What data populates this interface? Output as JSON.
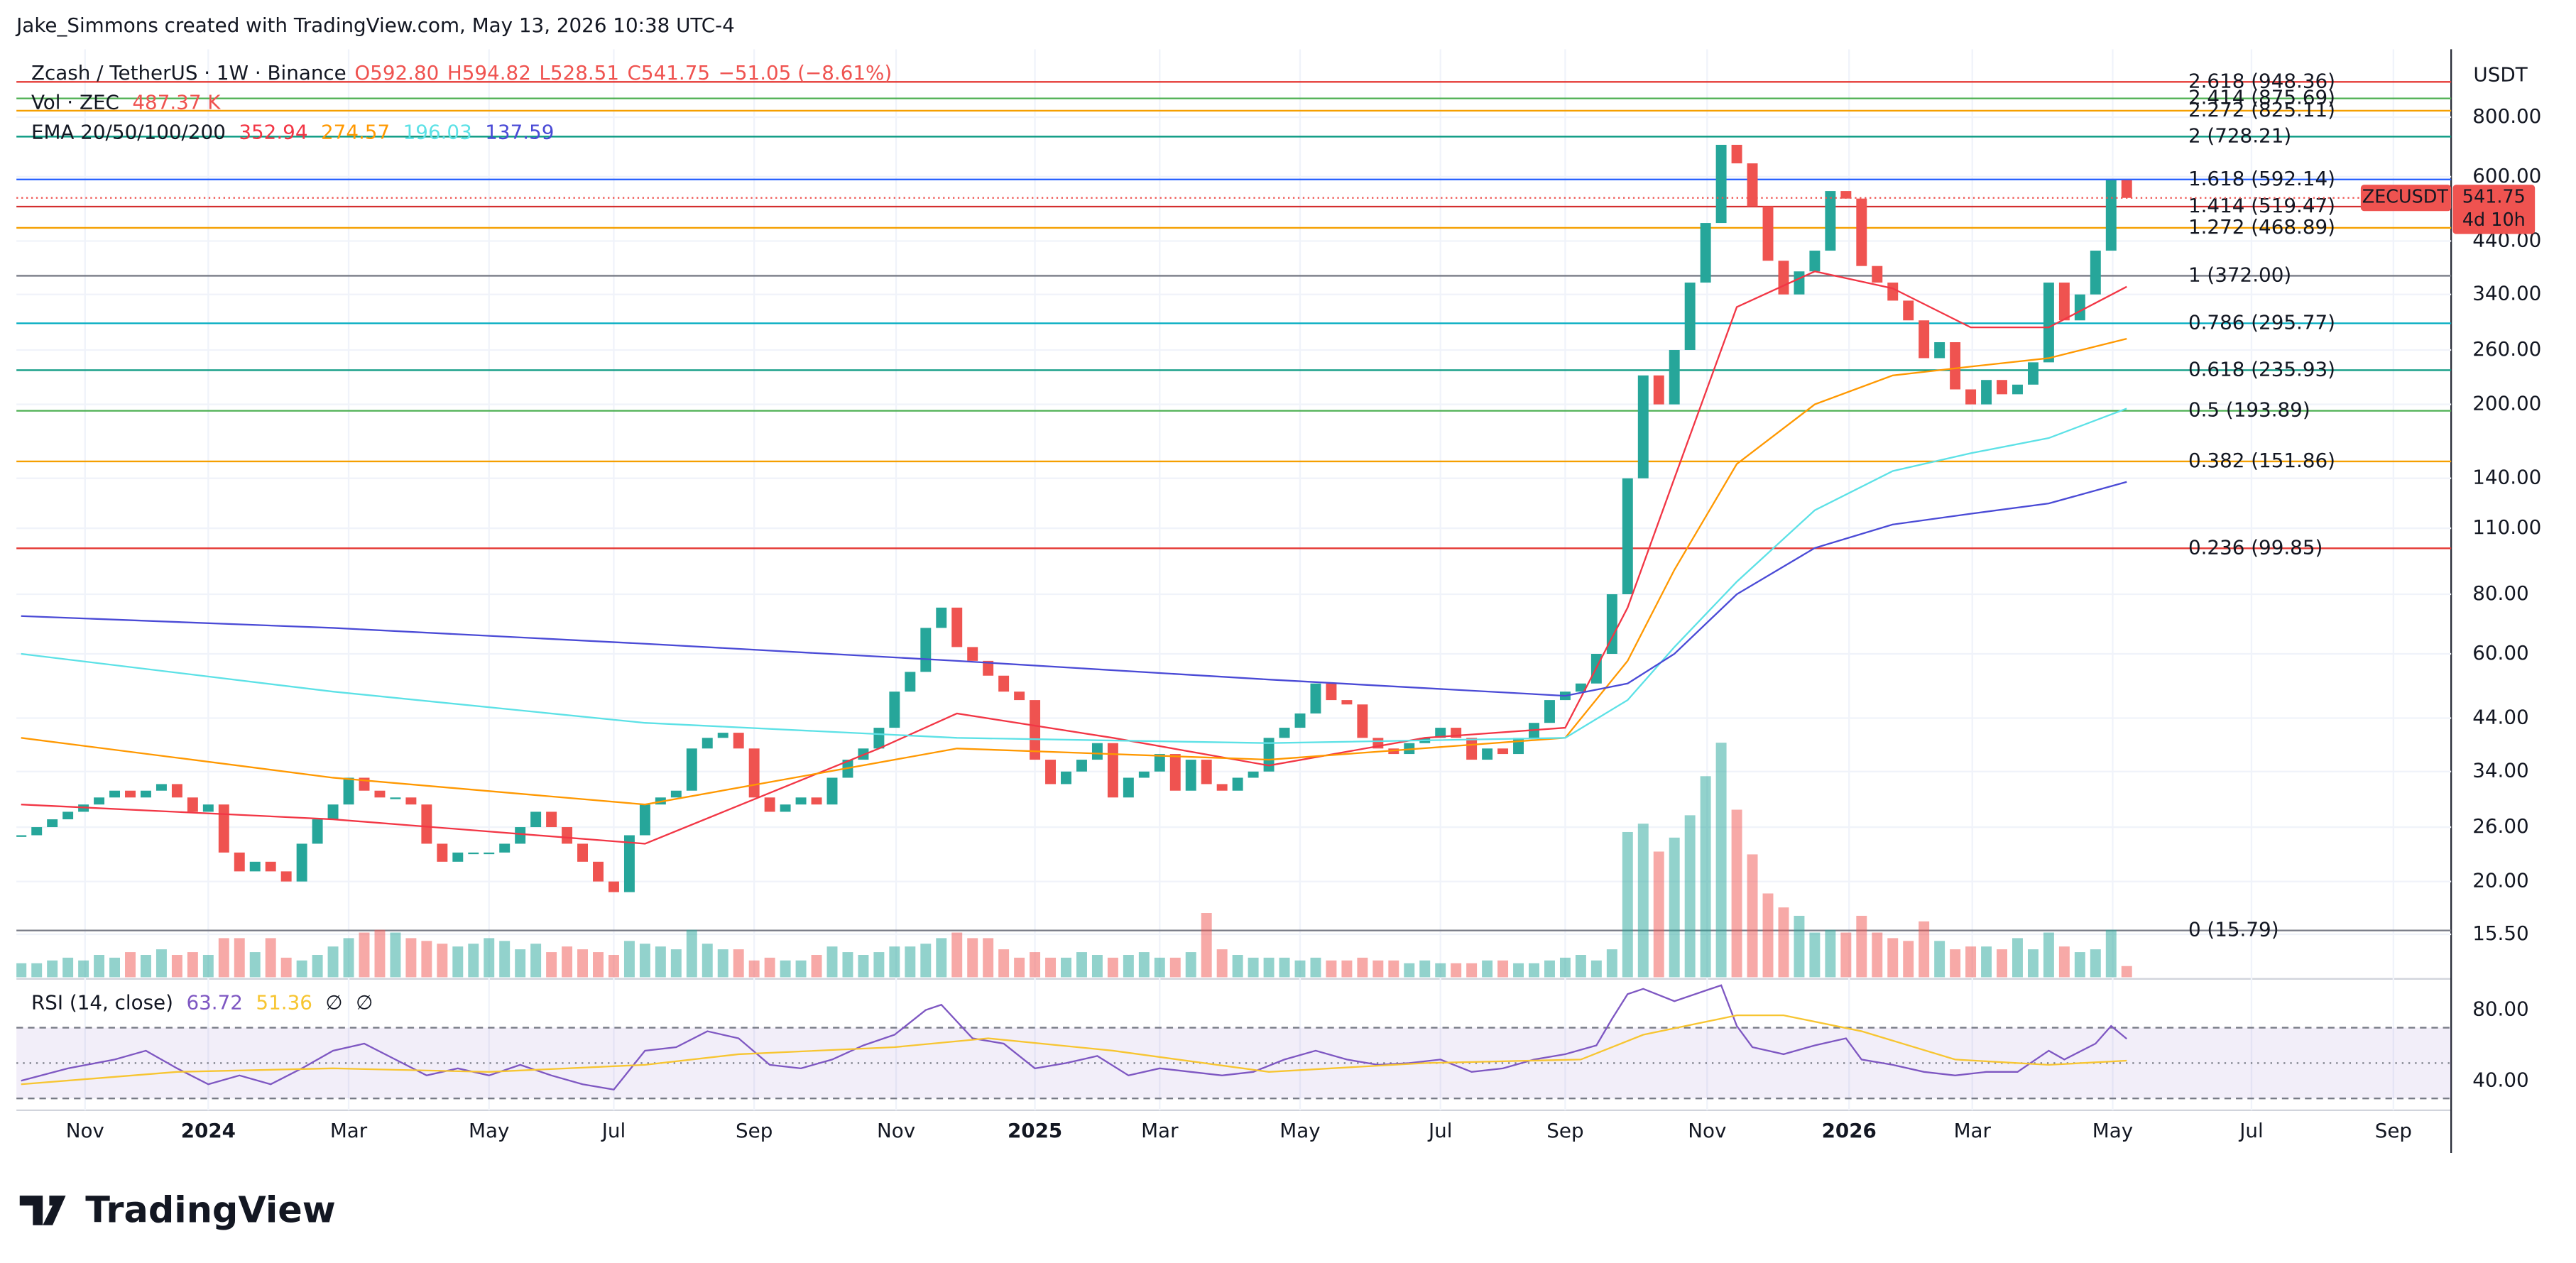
{
  "header": {
    "attribution": "Jake_Simmons created with TradingView.com, May 13, 2026 10:38 UTC-4"
  },
  "chart_data": {
    "type": "candlestick",
    "legend": {
      "symbol": "Zcash / TetherUS · 1W · Binance",
      "ohlc": [
        "O592.80",
        "H594.82",
        "L528.51",
        "C541.75"
      ],
      "change": "−51.05 (−8.61%)",
      "volume_label": "Vol · ZEC",
      "volume_value": "487.37 K",
      "ema_label": "EMA 20/50/100/200"
    },
    "currency": "USDT",
    "symbol_tag": "ZECUSDT",
    "countdown": "4d 10h",
    "colors": {
      "up": "#26a69a",
      "down": "#ef5350"
    },
    "closes": [
      25,
      26,
      27,
      28,
      29,
      30,
      31,
      30,
      31,
      32,
      30,
      28,
      29,
      23,
      21,
      22,
      21,
      20,
      24,
      27,
      29,
      33,
      31,
      30,
      30,
      29,
      24,
      22,
      23,
      23,
      23,
      24,
      26,
      28,
      26,
      24,
      22,
      20,
      19,
      25,
      29,
      30,
      31,
      38,
      40,
      41,
      38,
      30,
      28,
      29,
      30,
      29,
      33,
      36,
      38,
      42,
      50,
      55,
      68,
      75,
      62,
      58,
      54,
      50,
      48,
      36,
      32,
      34,
      36,
      39,
      30,
      33,
      34,
      37,
      31,
      36,
      32,
      31,
      33,
      34,
      40,
      42,
      45,
      52,
      48,
      47,
      40,
      38,
      37,
      39,
      40,
      42,
      40,
      36,
      38,
      37,
      40,
      43,
      48,
      50,
      52,
      60,
      80,
      140,
      230,
      200,
      260,
      360,
      480,
      700,
      640,
      520,
      400,
      340,
      380,
      420,
      560,
      540,
      390,
      360,
      330,
      300,
      250,
      270,
      215,
      200,
      225,
      210,
      220,
      245,
      360,
      300,
      340,
      420,
      590,
      541.75
    ],
    "volumes": [
      5,
      5,
      6,
      7,
      6,
      8,
      7,
      9,
      8,
      10,
      8,
      9,
      8,
      14,
      14,
      9,
      14,
      7,
      6,
      8,
      11,
      14,
      16,
      17,
      16,
      14,
      13,
      12,
      11,
      12,
      14,
      13,
      10,
      12,
      9,
      11,
      10,
      9,
      8,
      13,
      12,
      11,
      10,
      17,
      12,
      10,
      10,
      6,
      7,
      6,
      6,
      8,
      11,
      9,
      8,
      9,
      11,
      11,
      12,
      14,
      16,
      14,
      14,
      10,
      7,
      9,
      7,
      7,
      9,
      8,
      7,
      8,
      9,
      7,
      7,
      9,
      23,
      10,
      8,
      7,
      7,
      7,
      6,
      7,
      6,
      6,
      7,
      6,
      6,
      5,
      6,
      5,
      5,
      5,
      6,
      6,
      5,
      5,
      6,
      7,
      8,
      6,
      10,
      52,
      55,
      45,
      50,
      58,
      72,
      84,
      60,
      44,
      30,
      25,
      22,
      16,
      17,
      16,
      22,
      16,
      14,
      13,
      20,
      13,
      10,
      11,
      11,
      10,
      14,
      10,
      16,
      11,
      9,
      10,
      17,
      4
    ],
    "vlim": [
      0,
      100
    ],
    "log_scale": true,
    "grid": true,
    "ylim": [
      12.6,
      1110
    ],
    "yticks": [
      {
        "value": 800,
        "label": "800.00"
      },
      {
        "value": 600,
        "label": "600.00"
      },
      {
        "value": 440,
        "label": "440.00"
      },
      {
        "value": 340,
        "label": "340.00"
      },
      {
        "value": 260,
        "label": "260.00"
      },
      {
        "value": 200,
        "label": "200.00"
      },
      {
        "value": 140,
        "label": "140.00"
      },
      {
        "value": 110,
        "label": "110.00"
      },
      {
        "value": 80,
        "label": "80.00"
      },
      {
        "value": 60,
        "label": "60.00"
      },
      {
        "value": 44,
        "label": "44.00"
      },
      {
        "value": 34,
        "label": "34.00"
      },
      {
        "value": 26,
        "label": "26.00"
      },
      {
        "value": 20,
        "label": "20.00"
      },
      {
        "value": 15.5,
        "label": "15.50"
      }
    ],
    "xlim": [
      -0.3,
      155.8
    ],
    "xticks": [
      {
        "value": 4.1,
        "label": "Nov"
      },
      {
        "value": 12.0,
        "label": "2024"
      },
      {
        "value": 21.0,
        "label": "Mar"
      },
      {
        "value": 30.0,
        "label": "May"
      },
      {
        "value": 38.0,
        "label": "Jul"
      },
      {
        "value": 47.0,
        "label": "Sep"
      },
      {
        "value": 56.1,
        "label": "Nov"
      },
      {
        "value": 65.0,
        "label": "2025"
      },
      {
        "value": 73.0,
        "label": "Mar"
      },
      {
        "value": 82.0,
        "label": "May"
      },
      {
        "value": 91.0,
        "label": "Jul"
      },
      {
        "value": 99.0,
        "label": "Sep"
      },
      {
        "value": 108.1,
        "label": "Nov"
      },
      {
        "value": 117.2,
        "label": "2026"
      },
      {
        "value": 125.1,
        "label": "Mar"
      },
      {
        "value": 134.1,
        "label": "May"
      },
      {
        "value": 143.0,
        "label": "Jul"
      },
      {
        "value": 152.1,
        "label": "Sep"
      }
    ],
    "ema_series": [
      {
        "color": "#f23645",
        "x": [
          0,
          20,
          40,
          55,
          60,
          70,
          80,
          90,
          99,
          103,
          106,
          110,
          115,
          120,
          125,
          130,
          135
        ],
        "values": [
          29,
          27,
          24,
          38,
          45,
          40,
          35,
          40,
          42,
          75,
          140,
          320,
          380,
          350,
          290,
          290,
          352.94
        ]
      },
      {
        "color": "#ff9800",
        "x": [
          0,
          20,
          40,
          60,
          80,
          99,
          103,
          106,
          110,
          115,
          120,
          125,
          130,
          135
        ],
        "values": [
          40,
          33,
          29,
          38,
          36,
          40,
          58,
          90,
          150,
          200,
          230,
          240,
          250,
          274.57
        ]
      },
      {
        "color": "#5ce1e6",
        "x": [
          0,
          20,
          40,
          60,
          80,
          99,
          103,
          106,
          110,
          115,
          120,
          125,
          130,
          135
        ],
        "values": [
          60,
          50,
          43,
          40,
          39,
          40,
          48,
          62,
          85,
          120,
          145,
          158,
          170,
          196.03
        ]
      },
      {
        "color": "#4a4ad6",
        "x": [
          0,
          20,
          40,
          60,
          80,
          99,
          103,
          106,
          110,
          115,
          120,
          125,
          130,
          135
        ],
        "values": [
          72,
          68,
          63,
          58,
          53,
          49,
          52,
          60,
          80,
          100,
          112,
          118,
          124,
          137.59
        ]
      }
    ],
    "fib_levels": [
      {
        "label": "2.618 (948.36)",
        "value": 948.36,
        "color": "#e53935"
      },
      {
        "label": "2.414 (875.69)",
        "value": 875.69,
        "color": "#4caf50"
      },
      {
        "label": "2.272 (825.11)",
        "value": 825.11,
        "color": "#f59f00"
      },
      {
        "label": "2 (728.21)",
        "value": 728.21,
        "color": "#089981"
      },
      {
        "label": "1.618 (592.14)",
        "value": 592.14,
        "color": "#2962ff"
      },
      {
        "label": "1.414 (519.47)",
        "value": 519.47,
        "color": "#d32f2f"
      },
      {
        "label": "1.272 (468.89)",
        "value": 468.89,
        "color": "#f59f00"
      },
      {
        "label": "1 (372.00)",
        "value": 372.0,
        "color": "#787b86"
      },
      {
        "label": "0.786 (295.77)",
        "value": 295.77,
        "color": "#00acc1"
      },
      {
        "label": "0.618 (235.93)",
        "value": 235.93,
        "color": "#089981"
      },
      {
        "label": "0.5 (193.89)",
        "value": 193.89,
        "color": "#4caf50"
      },
      {
        "label": "0.382 (151.86)",
        "value": 151.86,
        "color": "#f59f00"
      },
      {
        "label": "0.236 (99.85)",
        "value": 99.85,
        "color": "#e53935"
      },
      {
        "label": "0 (15.79)",
        "value": 15.79,
        "color": "#787b86"
      }
    ],
    "rsi": {
      "label": "RSI (14, close)",
      "extra": [
        "∅",
        "∅"
      ],
      "ylim": [
        23.3,
        96.7
      ],
      "yticks": [
        {
          "value": 80,
          "label": "80.00"
        },
        {
          "value": 40,
          "label": "40.00"
        }
      ],
      "bands": [
        70,
        50,
        30
      ],
      "series": [
        {
          "color": "#7e57c2",
          "x": [
            0,
            3,
            6,
            8,
            10,
            12,
            14,
            16,
            18,
            20,
            22,
            24,
            26,
            28,
            30,
            32,
            34,
            36,
            38,
            40,
            42,
            44,
            46,
            48,
            50,
            52,
            54,
            56,
            58,
            59,
            61,
            63,
            65,
            67,
            69,
            71,
            73,
            75,
            77,
            79,
            81,
            83,
            85,
            87,
            89,
            91,
            93,
            95,
            97,
            99,
            101,
            102,
            103,
            104,
            106,
            108,
            109,
            110,
            111,
            113,
            115,
            117,
            118,
            120,
            122,
            124,
            126,
            128,
            130,
            131,
            133,
            134,
            135
          ],
          "values": [
            40,
            47,
            52,
            57,
            47,
            38,
            43,
            38,
            47,
            57,
            61,
            52,
            43,
            47,
            43,
            49,
            43,
            38,
            35,
            57,
            59,
            68,
            64,
            49,
            47,
            52,
            60,
            66,
            80,
            83,
            64,
            61,
            47,
            50,
            54,
            43,
            47,
            45,
            43,
            45,
            52,
            57,
            52,
            49,
            50,
            52,
            45,
            47,
            52,
            55,
            60,
            75,
            89,
            92,
            85,
            91,
            94,
            71,
            59,
            55,
            60,
            64,
            52,
            49,
            45,
            43,
            45,
            45,
            57,
            52,
            61,
            71,
            63.72
          ]
        },
        {
          "color": "#f7c531",
          "x": [
            0,
            10,
            20,
            30,
            40,
            46,
            56,
            62,
            70,
            80,
            90,
            100,
            104,
            110,
            113,
            118,
            124,
            130,
            135
          ],
          "values": [
            38,
            45,
            47,
            45,
            49,
            55,
            59,
            64,
            57,
            45,
            50,
            52,
            66,
            77,
            77,
            68,
            52,
            49,
            51.36
          ]
        }
      ]
    }
  },
  "branding": {
    "logo": "TradingView"
  }
}
